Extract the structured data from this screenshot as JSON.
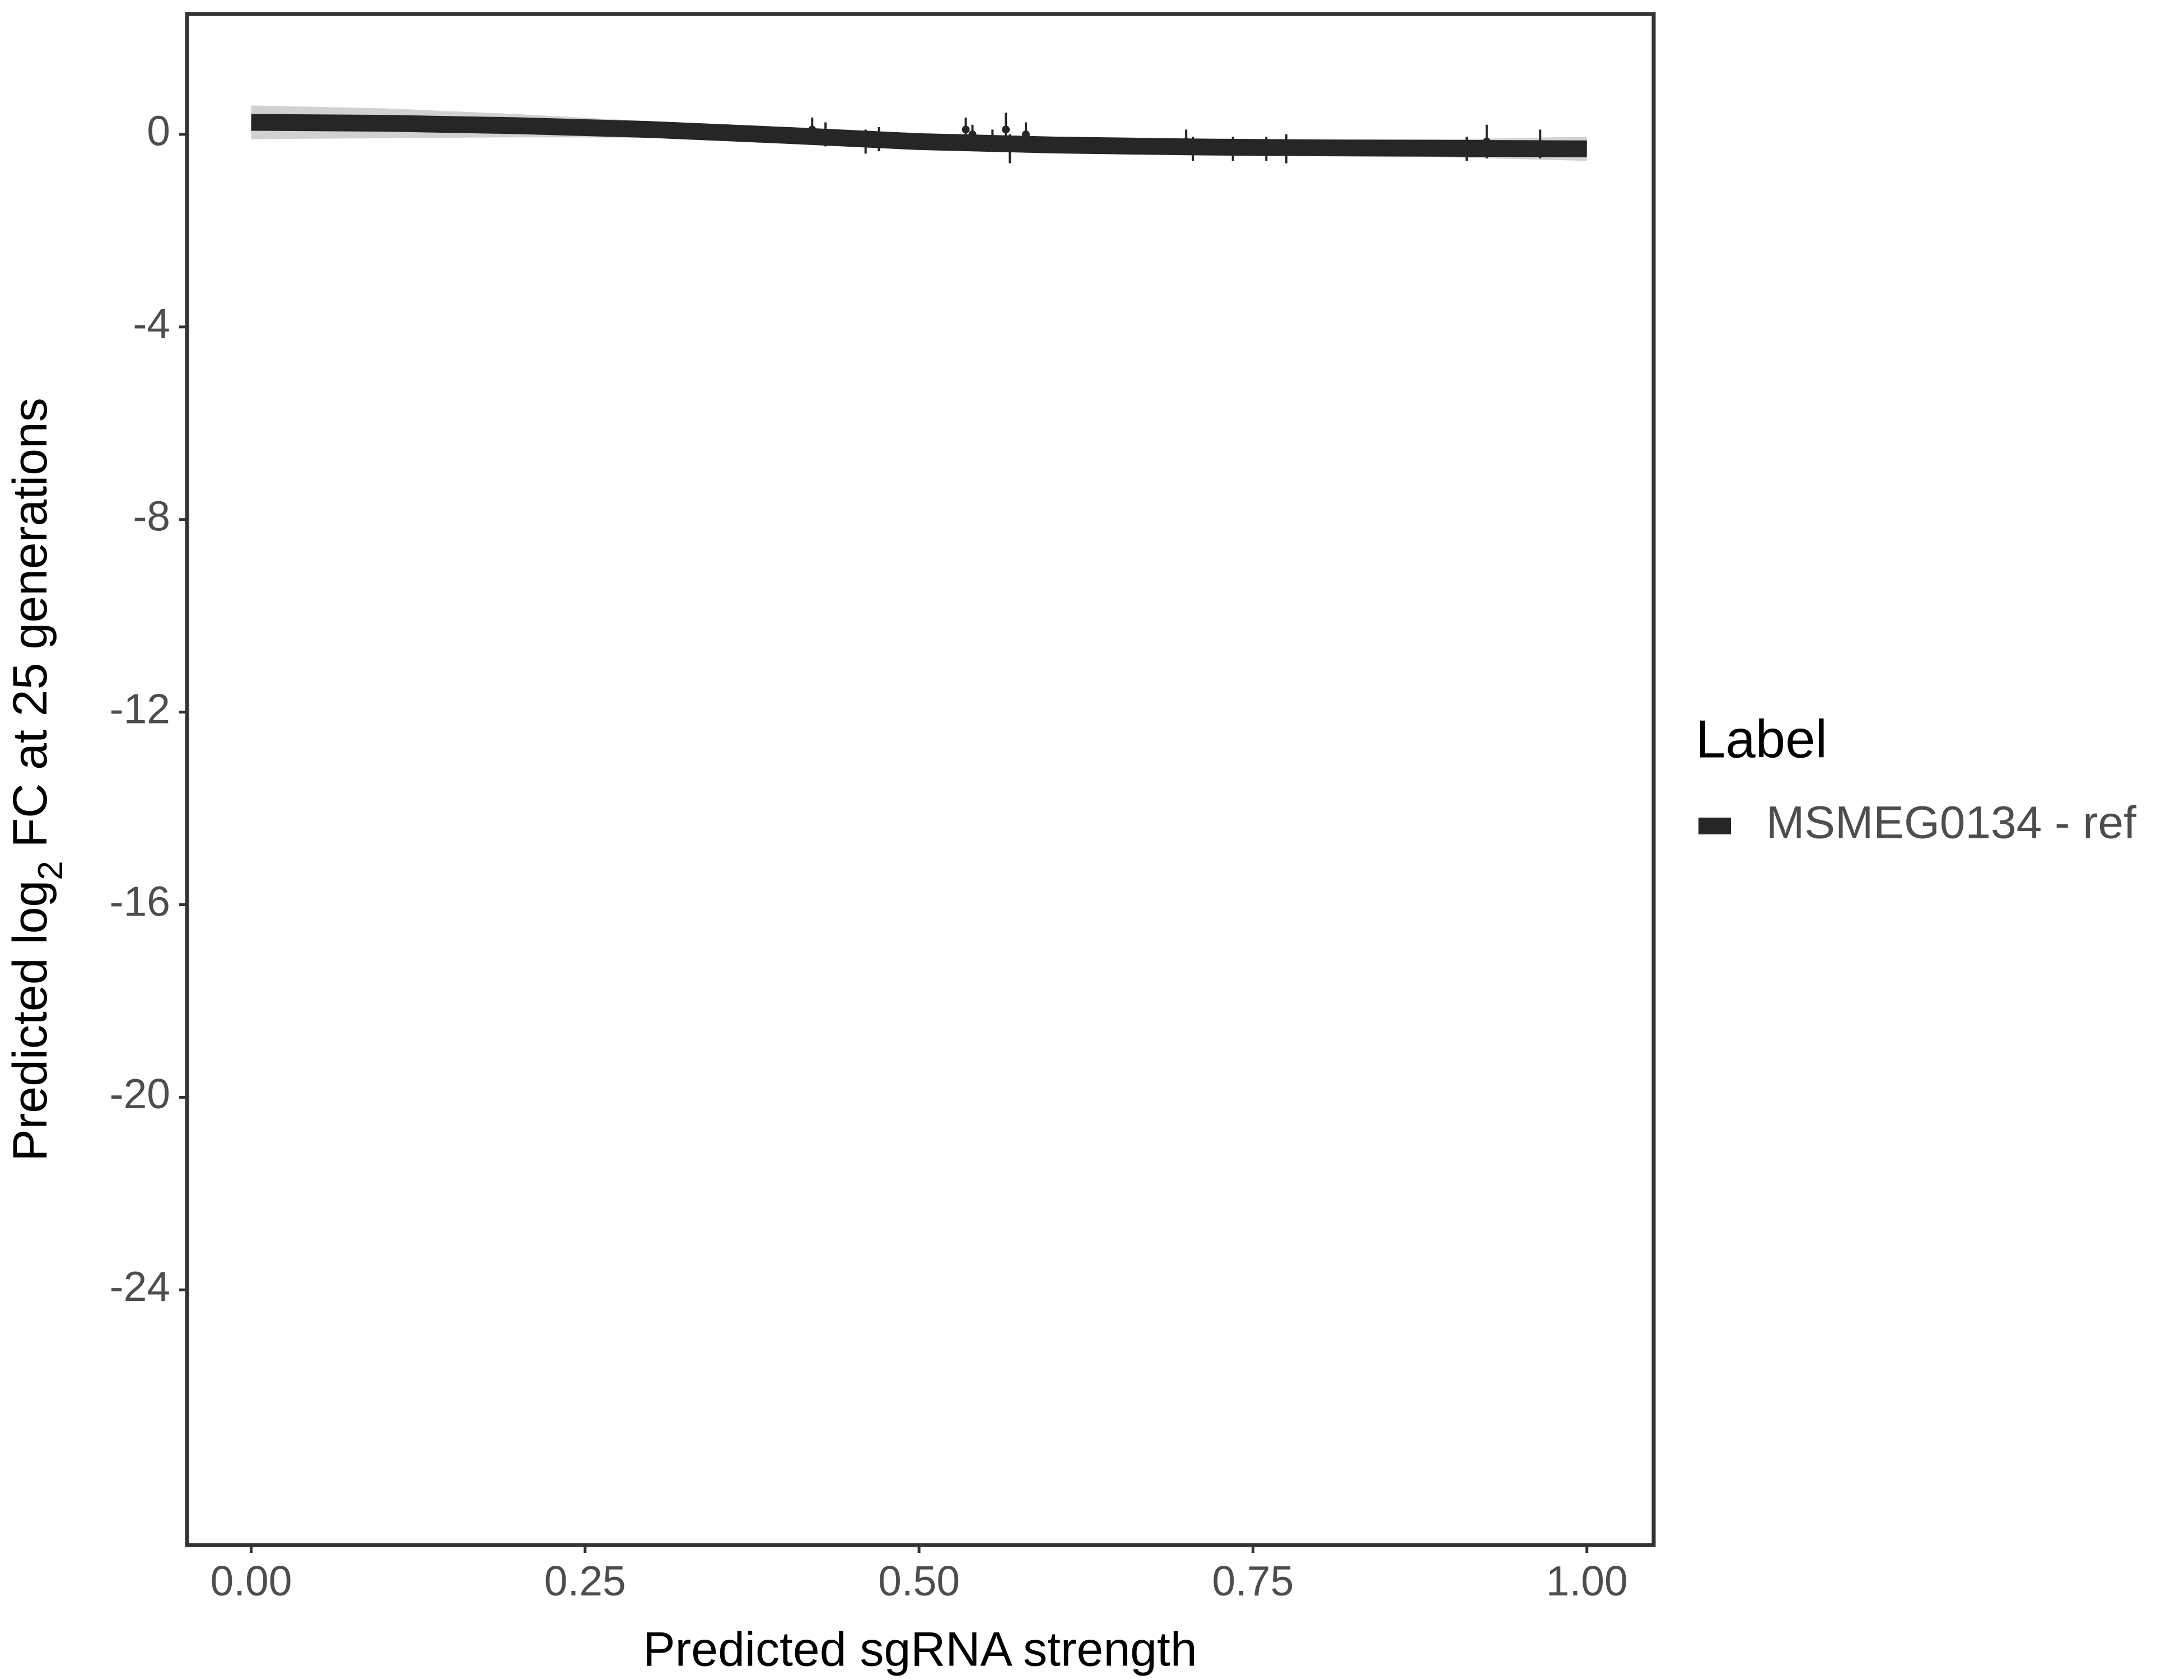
{
  "chart_data": {
    "type": "line",
    "x_label": "Predicted sgRNA strength",
    "y_label": [
      "Predicted  log",
      "2",
      " FC at 25 generations"
    ],
    "legend_title": "Label",
    "x": [
      0,
      0.1,
      0.2,
      0.3,
      0.4,
      0.5,
      0.6,
      0.7,
      0.8,
      0.9,
      1.0
    ],
    "series": [
      {
        "name": "MSMEG0134 - ref",
        "color": "#262626",
        "band_color": "#b3b3b3",
        "values": [
          0.25,
          0.23,
          0.18,
          0.1,
          -0.02,
          -0.15,
          -0.22,
          -0.26,
          -0.28,
          -0.29,
          -0.3
        ],
        "lower": [
          -0.1,
          -0.08,
          -0.06,
          -0.07,
          -0.17,
          -0.3,
          -0.38,
          -0.42,
          -0.45,
          -0.48,
          -0.55
        ],
        "upper": [
          0.6,
          0.54,
          0.42,
          0.27,
          0.13,
          0.0,
          -0.06,
          -0.1,
          -0.11,
          -0.1,
          -0.05
        ]
      }
    ],
    "points": {
      "color": "#262626",
      "x": [
        0.42,
        0.43,
        0.46,
        0.47,
        0.535,
        0.54,
        0.555,
        0.565,
        0.568,
        0.58,
        0.7,
        0.705,
        0.735,
        0.76,
        0.775,
        0.91,
        0.925,
        0.965
      ],
      "values": [
        0.1,
        0.0,
        -0.15,
        -0.1,
        0.1,
        0.0,
        -0.1,
        0.1,
        -0.3,
        0.0,
        -0.15,
        -0.3,
        -0.3,
        -0.3,
        -0.3,
        -0.3,
        -0.15,
        -0.2
      ],
      "errors": [
        0.25,
        0.25,
        0.25,
        0.25,
        0.25,
        0.2,
        0.2,
        0.35,
        0.3,
        0.25,
        0.25,
        0.25,
        0.25,
        0.25,
        0.3,
        0.25,
        0.35,
        0.3
      ]
    },
    "xlim": [
      -0.048,
      1.05
    ],
    "ylim": [
      -29.3,
      2.5
    ],
    "xticks": [
      {
        "value": 0,
        "label": "0.00"
      },
      {
        "value": 0.25,
        "label": "0.25"
      },
      {
        "value": 0.5,
        "label": "0.50"
      },
      {
        "value": 0.75,
        "label": "0.75"
      },
      {
        "value": 1,
        "label": "1.00"
      }
    ],
    "yticks": [
      0,
      -4,
      -8,
      -12,
      -16,
      -20,
      -24
    ],
    "grid": false
  }
}
